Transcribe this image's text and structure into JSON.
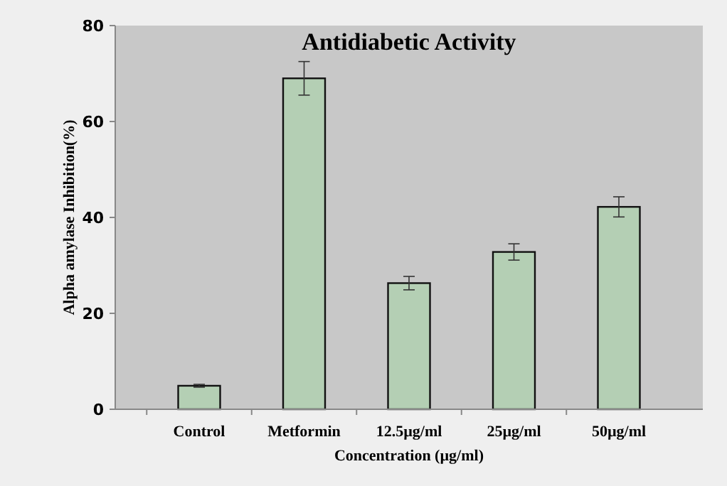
{
  "chart_data": {
    "type": "bar",
    "title": "Antidiabetic Activity",
    "xlabel": "Concentration (µg/ml)",
    "ylabel": "Alpha amylase Inhibition(%)",
    "categories": [
      "Control",
      "Metformin",
      "12.5µg/ml",
      "25µg/ml",
      "50µg/ml"
    ],
    "values": [
      4.9,
      69.0,
      26.3,
      32.8,
      42.2
    ],
    "errors": [
      0.3,
      3.5,
      1.4,
      1.7,
      2.1
    ],
    "color": "#b4cfb4",
    "ylim": [
      0,
      80
    ],
    "yticks": [
      0,
      20,
      40,
      60,
      80
    ]
  }
}
